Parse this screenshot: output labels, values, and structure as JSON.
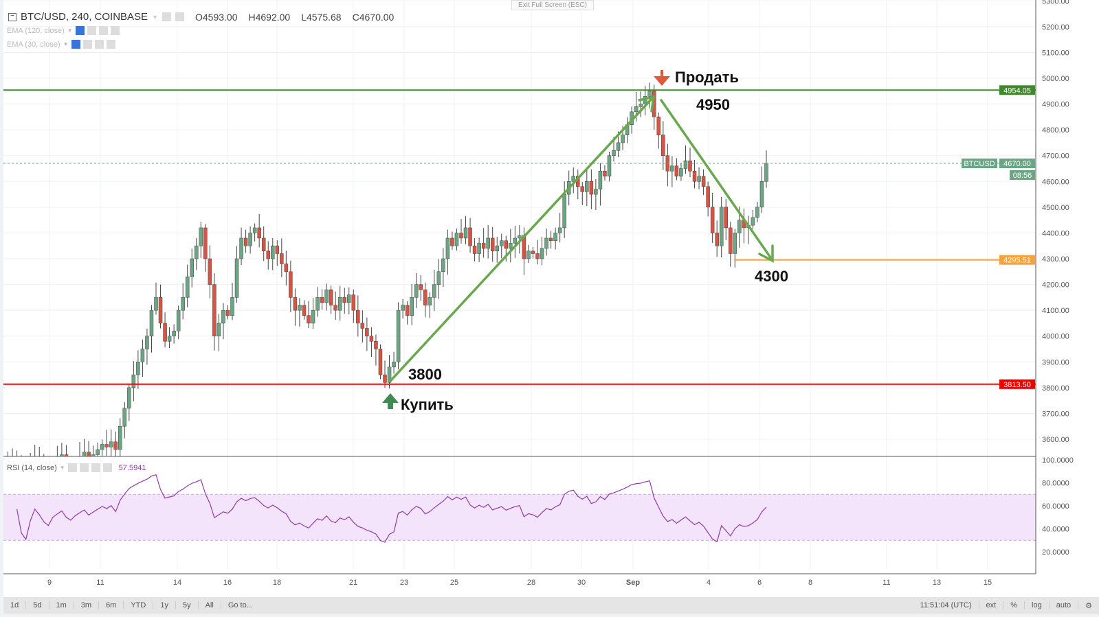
{
  "header": {
    "symbol": "BTC/USD, 240, COINBASE",
    "open": "O4593.00",
    "high": "H4692.00",
    "low": "L4575.68",
    "close": "C4670.00"
  },
  "indicators": [
    {
      "label": "EMA (120, close)"
    },
    {
      "label": "EMA (30, close)"
    }
  ],
  "rsi": {
    "label": "RSI (14, close)",
    "value": "57.5941"
  },
  "exit_fullscreen": "Exit Full Screen (ESC)",
  "price_axis": [
    "5300.00",
    "5200.00",
    "5100.00",
    "5000.00",
    "4900.00",
    "4800.00",
    "4700.00",
    "4600.00",
    "4500.00",
    "4400.00",
    "4300.00",
    "4200.00",
    "4100.00",
    "4000.00",
    "3900.00",
    "3800.00",
    "3700.00",
    "3600.00"
  ],
  "rsi_axis": [
    "100.0000",
    "80.0000",
    "60.0000",
    "40.0000",
    "20.0000"
  ],
  "price_tags": {
    "resistance": "4954.05",
    "support": "3813.50",
    "target": "4295.51",
    "symbol": "BTCUSD",
    "last": "4670.00",
    "countdown": "08:56"
  },
  "annotations": {
    "sell": "Продать",
    "sell_price": "4950",
    "buy": "Купить",
    "buy_price": "3800",
    "target_price": "4300"
  },
  "date_axis": [
    "9",
    "11",
    "14",
    "16",
    "18",
    "21",
    "23",
    "25",
    "28",
    "30",
    "Sep",
    "4",
    "6",
    "8",
    "11",
    "13",
    "15"
  ],
  "bottom_bar": {
    "ranges": [
      "1d",
      "5d",
      "1m",
      "3m",
      "6m",
      "YTD",
      "1y",
      "5y",
      "All",
      "Go to..."
    ],
    "time": "11:51:04 (UTC)",
    "ext": "ext",
    "percent": "%",
    "log": "log",
    "auto": "auto"
  },
  "colors": {
    "up": "#6ba583",
    "down": "#d75442",
    "resistance": "#3d8a2b",
    "support": "#ff0000",
    "target": "#f7a33b",
    "arrow": "#6aa84f",
    "rsi": "#8e3aa8"
  },
  "chart_data": {
    "type": "candlestick",
    "title": "BTC/USD, 240, COINBASE",
    "ylim": [
      3550,
      5320
    ],
    "rsi_ylim": [
      10,
      100
    ],
    "closes": [
      3500,
      3480,
      3520,
      3510,
      3470,
      3450,
      3490,
      3530,
      3510,
      3480,
      3460,
      3500,
      3520,
      3540,
      3500,
      3480,
      3510,
      3530,
      3550,
      3520,
      3540,
      3560,
      3580,
      3570,
      3590,
      3560,
      3650,
      3720,
      3800,
      3850,
      3900,
      3950,
      4000,
      4100,
      4150,
      4050,
      3980,
      4000,
      4020,
      4100,
      4150,
      4230,
      4300,
      4350,
      4420,
      4300,
      4200,
      4000,
      4050,
      4100,
      4080,
      4150,
      4300,
      4380,
      4350,
      4400,
      4420,
      4380,
      4330,
      4300,
      4350,
      4320,
      4280,
      4250,
      4150,
      4100,
      4120,
      4080,
      4050,
      4100,
      4150,
      4130,
      4180,
      4120,
      4100,
      4150,
      4130,
      4160,
      4100,
      4050,
      4030,
      4000,
      3980,
      3950,
      3850,
      3820,
      3880,
      3900,
      4100,
      4120,
      4080,
      4150,
      4200,
      4180,
      4120,
      4150,
      4200,
      4250,
      4300,
      4380,
      4350,
      4400,
      4380,
      4420,
      4350,
      4320,
      4360,
      4340,
      4380,
      4330,
      4350,
      4370,
      4340,
      4360,
      4380,
      4390,
      4300,
      4330,
      4320,
      4300,
      4340,
      4380,
      4370,
      4400,
      4420,
      4550,
      4600,
      4620,
      4580,
      4560,
      4600,
      4550,
      4570,
      4640,
      4620,
      4700,
      4720,
      4750,
      4780,
      4820,
      4870,
      4890,
      4900,
      4930,
      4950,
      4850,
      4780,
      4700,
      4640,
      4660,
      4620,
      4650,
      4680,
      4640,
      4600,
      4620,
      4580,
      4500,
      4400,
      4350,
      4500,
      4420,
      4320,
      4400,
      4450,
      4420,
      4430,
      4460,
      4500,
      4600,
      4670
    ],
    "levels": [
      4954.05,
      4670.0,
      4295.51,
      3813.5
    ]
  }
}
